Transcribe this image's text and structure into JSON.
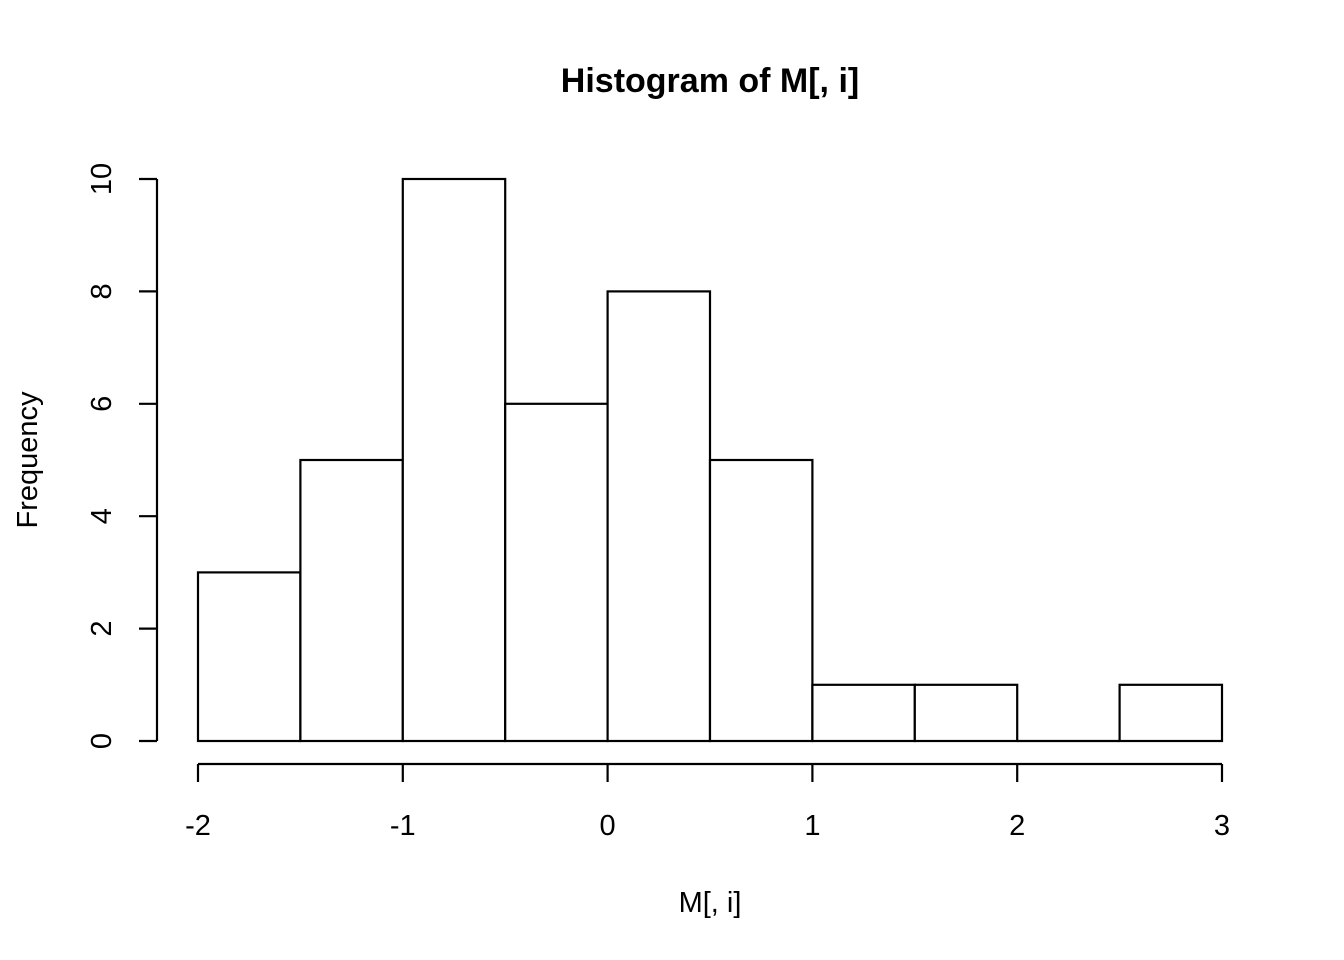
{
  "chart_data": {
    "type": "bar",
    "subtype": "histogram",
    "title": "Histogram of M[, i]",
    "xlabel": "M[, i]",
    "ylabel": "Frequency",
    "bins": [
      {
        "start": -2.0,
        "end": -1.5,
        "count": 3
      },
      {
        "start": -1.5,
        "end": -1.0,
        "count": 5
      },
      {
        "start": -1.0,
        "end": -0.5,
        "count": 10
      },
      {
        "start": -0.5,
        "end": 0.0,
        "count": 6
      },
      {
        "start": 0.0,
        "end": 0.5,
        "count": 8
      },
      {
        "start": 0.5,
        "end": 1.0,
        "count": 5
      },
      {
        "start": 1.0,
        "end": 1.5,
        "count": 1
      },
      {
        "start": 1.5,
        "end": 2.0,
        "count": 1
      },
      {
        "start": 2.0,
        "end": 2.5,
        "count": 0
      },
      {
        "start": 2.5,
        "end": 3.0,
        "count": 1
      }
    ],
    "xlim": [
      -2,
      3
    ],
    "ylim": [
      0,
      10
    ],
    "x_ticks": [
      -2,
      -1,
      0,
      1,
      2,
      3
    ],
    "x_tick_labels": [
      "-2",
      "-1",
      "0",
      "1",
      "2",
      "3"
    ],
    "y_ticks": [
      0,
      2,
      4,
      6,
      8,
      10
    ],
    "y_tick_labels": [
      "0",
      "2",
      "4",
      "6",
      "8",
      "10"
    ],
    "grid": false,
    "legend": "none",
    "bar_fill": "#ffffff",
    "bar_stroke": "#000000"
  }
}
